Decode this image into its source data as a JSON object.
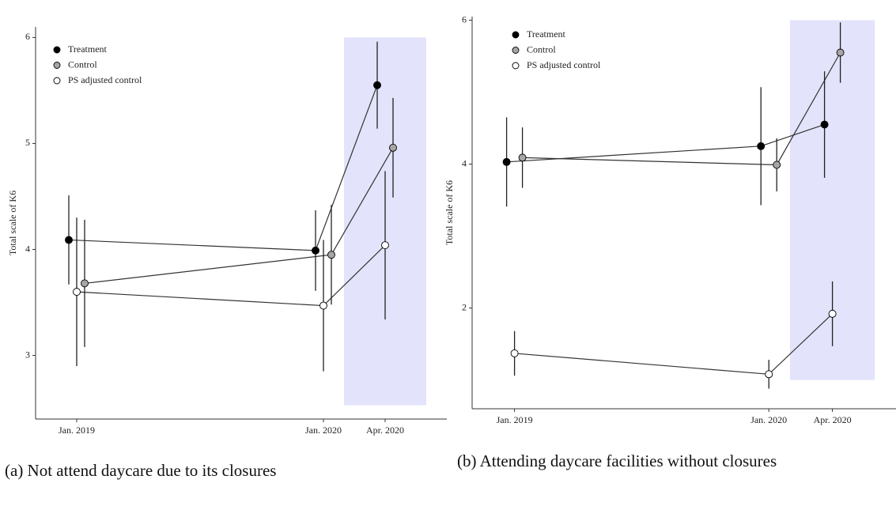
{
  "chart_data": [
    {
      "type": "errorbar-line",
      "caption": "(a) Not attend daycare due to its closures",
      "y_label": "Total scale of K6",
      "x": [
        "2019-01",
        "2020-01",
        "2020-04"
      ],
      "xlim": [
        "2018-11",
        "2020-07"
      ],
      "xticks": [
        {
          "value": "2019-01",
          "label": "Jan. 2019"
        },
        {
          "value": "2020-01",
          "label": "Jan. 2020"
        },
        {
          "value": "2020-04",
          "label": "Apr. 2020"
        }
      ],
      "ylim": [
        2.4,
        6.1
      ],
      "yticks": [
        3,
        4,
        5,
        6
      ],
      "legend": "top-left",
      "shaded_region": {
        "xlim": [
          "2020-02",
          "2020-06"
        ],
        "ylim": [
          2.53,
          6
        ],
        "color": "#e3e3fb"
      },
      "series": [
        {
          "name": "Treatment",
          "color": "#000000",
          "values": [
            4.09,
            3.99,
            5.55
          ],
          "errors": [
            0.42,
            0.38,
            0.41
          ]
        },
        {
          "name": "Control",
          "color": "#a6a6a6",
          "values": [
            3.68,
            3.95,
            4.96
          ],
          "errors": [
            0.6,
            0.47,
            0.47
          ]
        },
        {
          "name": "PS adjusted control",
          "color": "#ffffff",
          "values": [
            3.6,
            3.47,
            4.04
          ],
          "errors": [
            0.7,
            0.62,
            0.7
          ]
        }
      ]
    },
    {
      "type": "errorbar-line",
      "caption": "(b) Attending daycare facilities without closures",
      "y_label": "Total scale of K6",
      "x": [
        "2019-01",
        "2020-01",
        "2020-04"
      ],
      "xlim": [
        "2018-11",
        "2020-07"
      ],
      "xticks": [
        {
          "value": "2019-01",
          "label": "Jan. 2019"
        },
        {
          "value": "2020-01",
          "label": "Jan. 2020"
        },
        {
          "value": "2020-04",
          "label": "Apr. 2020"
        }
      ],
      "ylim": [
        0.6,
        6.05
      ],
      "yticks": [
        2,
        4,
        6
      ],
      "legend": "top-left",
      "shaded_region": {
        "xlim": [
          "2020-02",
          "2020-06"
        ],
        "ylim": [
          1,
          6
        ],
        "color": "#e3e3fb"
      },
      "series": [
        {
          "name": "Treatment",
          "color": "#000000",
          "values": [
            4.03,
            4.25,
            4.55
          ],
          "errors": [
            0.62,
            0.82,
            0.74
          ]
        },
        {
          "name": "Control",
          "color": "#a6a6a6",
          "values": [
            4.09,
            3.99,
            5.55
          ],
          "errors": [
            0.42,
            0.37,
            0.42
          ]
        },
        {
          "name": "PS adjusted control",
          "color": "#ffffff",
          "values": [
            1.37,
            1.08,
            1.92
          ],
          "errors": [
            0.31,
            0.2,
            0.45
          ]
        }
      ]
    }
  ]
}
